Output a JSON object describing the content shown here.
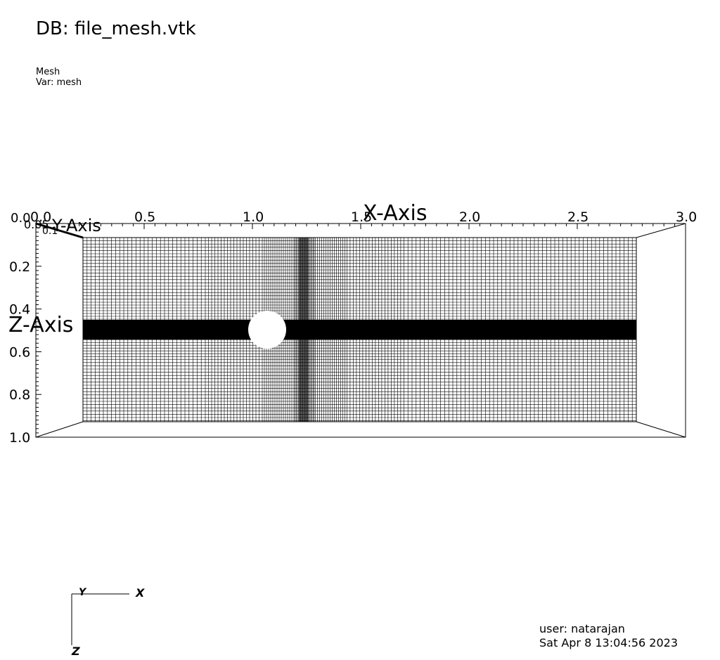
{
  "header": {
    "db_title": "DB: file_mesh.vtk",
    "plot_name": "Mesh",
    "var_label": "Var: mesh"
  },
  "axes": {
    "x_title": "X-Axis",
    "z_title": "Z-Axis",
    "y_title": "Y-Axis",
    "x_ticks": [
      "0.0",
      "0.5",
      "1.0",
      "1.5",
      "2.0",
      "2.5",
      "3.0"
    ],
    "z_ticks": [
      "0.0",
      "0.2",
      "0.4",
      "0.6",
      "0.8",
      "1.0"
    ],
    "y_ticks_overlapped": [
      "0.0",
      "0.05",
      "0.1"
    ]
  },
  "triad": {
    "x_label": "X",
    "y_label": "Y",
    "z_label": "Z"
  },
  "footer": {
    "user": "user: natarajan",
    "date": "Sat Apr  8 13:04:56 2023"
  },
  "colors": {
    "mesh": "#000000",
    "background": "#ffffff"
  }
}
